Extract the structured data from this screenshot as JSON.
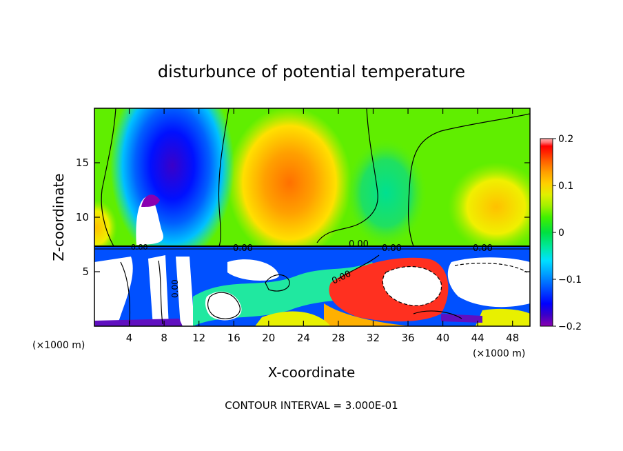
{
  "chart_data": {
    "type": "heatmap",
    "title": "disturbunce of potential temperature",
    "xlabel": "X-coordinate",
    "ylabel": "Z-coordinate",
    "x_unit_left": "(×1000 m)",
    "x_unit_right": "(×1000 m)",
    "xlim": [
      0,
      50
    ],
    "ylim": [
      0,
      20
    ],
    "x_ticks": [
      4,
      8,
      12,
      16,
      20,
      24,
      28,
      32,
      36,
      40,
      44,
      48
    ],
    "y_ticks": [
      5,
      10,
      15
    ],
    "colorbar": {
      "range": [
        -0.2,
        0.2
      ],
      "tick_values": [
        -0.2,
        -0.1,
        0,
        0.1,
        0.2
      ],
      "tick_labels": [
        "−0.2",
        "−0.1",
        "0",
        "0.1",
        "0.2"
      ],
      "colors": [
        "#8a00b0",
        "#3a00c8",
        "#0000ff",
        "#0050ff",
        "#00a0ff",
        "#00e0ff",
        "#00e8a0",
        "#00e040",
        "#40f000",
        "#a0f000",
        "#e0f000",
        "#ffd000",
        "#ffa000",
        "#ff6000",
        "#ff2000",
        "#ff0000",
        "#ff7070",
        "#ffb0b0"
      ]
    },
    "contour_labels": [
      "0.00",
      "0.00",
      "0.00",
      "0.00",
      "0.00",
      "0.00",
      "0.00"
    ],
    "annotation": "CONTOUR INTERVAL = 3.000E-01"
  }
}
